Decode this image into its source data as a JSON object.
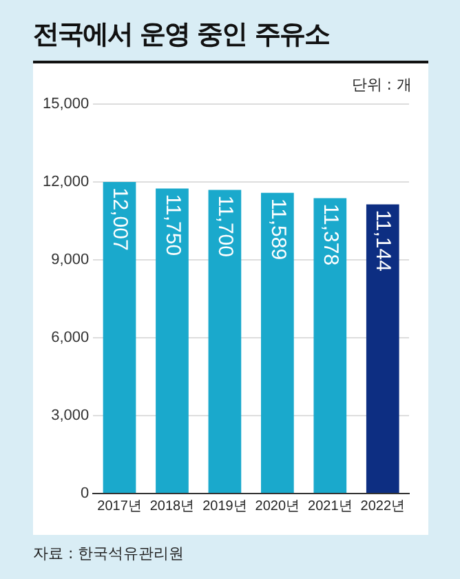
{
  "chart_data": {
    "type": "bar",
    "title": "전국에서 운영 중인 주유소",
    "categories": [
      "2017년",
      "2018년",
      "2019년",
      "2020년",
      "2021년",
      "2022년"
    ],
    "values": [
      12007,
      11750,
      11700,
      11589,
      11378,
      11144
    ],
    "value_labels": [
      "12,007",
      "11,750",
      "11,700",
      "11,589",
      "11,378",
      "11,144"
    ],
    "colors": [
      "#1aa9cc",
      "#1aa9cc",
      "#1aa9cc",
      "#1aa9cc",
      "#1aa9cc",
      "#0d2e82"
    ],
    "ylim": [
      0,
      15000
    ],
    "yticks": [
      {
        "value": 0,
        "label": "0"
      },
      {
        "value": 3000,
        "label": "3,000"
      },
      {
        "value": 6000,
        "label": "6,000"
      },
      {
        "value": 9000,
        "label": "9,000"
      },
      {
        "value": 12000,
        "label": "12,000"
      },
      {
        "value": 15000,
        "label": "15,000"
      }
    ],
    "grid": "y",
    "legend": false,
    "annotations": [
      "단위 : 개",
      "자료 : 한국석유관리원"
    ]
  }
}
